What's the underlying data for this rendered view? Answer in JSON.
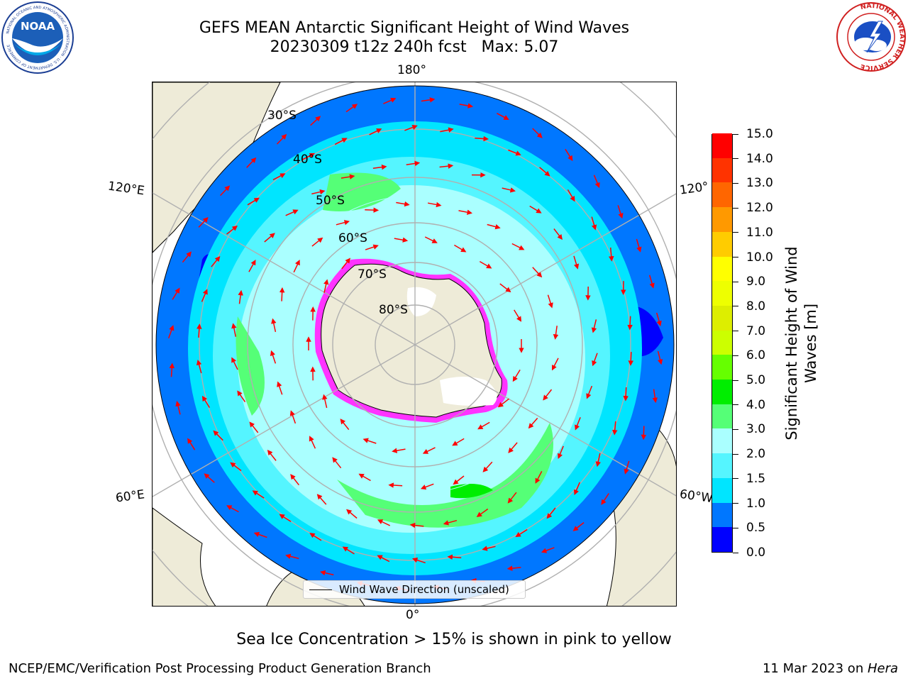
{
  "header": {
    "title_line1": "GEFS MEAN Antarctic Significant Height of Wind Waves",
    "title_line2": "20230309 t12z 240h fcst   Max: 5.07"
  },
  "logos": {
    "left": "NOAA",
    "left_ring": "NATIONAL OCEANIC AND ATMOSPHERIC ADMINISTRATION · U.S. DEPARTMENT OF COMMERCE",
    "right_ring": "NATIONAL WEATHER SERVICE"
  },
  "map": {
    "projection": "south-polar-stereographic",
    "longitude_labels": {
      "top": "180°",
      "bottom": "0°",
      "left_upper": "120°E",
      "right_upper": "120°",
      "left_lower": "60°E",
      "right_lower": "60°W"
    },
    "latitude_labels": [
      "30°S",
      "40°S",
      "50°S",
      "60°S",
      "70°S",
      "80°S"
    ],
    "legend_label": "Wind Wave Direction (unscaled)",
    "colors": {
      "land": "#eeebd8",
      "arrow": "#ff0000",
      "grid": "#b0b0b0",
      "ice_pink": "#ff33ff",
      "ice_white": "#ffffff"
    }
  },
  "colorbar": {
    "label": "Significant Height of Wind\nWaves [m]",
    "ticks": [
      "15.0",
      "14.0",
      "13.0",
      "12.0",
      "11.0",
      "10.0",
      "9.0",
      "8.0",
      "7.0",
      "6.0",
      "5.0",
      "4.0",
      "3.0",
      "2.0",
      "1.5",
      "1.0",
      "0.5",
      "0.0"
    ],
    "bins": [
      {
        "from": 0.0,
        "to": 0.5,
        "color": "#0000ff"
      },
      {
        "from": 0.5,
        "to": 1.0,
        "color": "#0077ff"
      },
      {
        "from": 1.0,
        "to": 1.5,
        "color": "#00e5ff"
      },
      {
        "from": 1.5,
        "to": 2.0,
        "color": "#55f5ff"
      },
      {
        "from": 2.0,
        "to": 3.0,
        "color": "#aaffff"
      },
      {
        "from": 3.0,
        "to": 4.0,
        "color": "#55ff77"
      },
      {
        "from": 4.0,
        "to": 5.0,
        "color": "#00ee00"
      },
      {
        "from": 5.0,
        "to": 6.0,
        "color": "#66ff00"
      },
      {
        "from": 6.0,
        "to": 7.0,
        "color": "#ccff00"
      },
      {
        "from": 7.0,
        "to": 8.0,
        "color": "#ddee00"
      },
      {
        "from": 8.0,
        "to": 9.0,
        "color": "#eeff00"
      },
      {
        "from": 9.0,
        "to": 10.0,
        "color": "#ffff00"
      },
      {
        "from": 10.0,
        "to": 11.0,
        "color": "#ffcc00"
      },
      {
        "from": 11.0,
        "to": 12.0,
        "color": "#ff9900"
      },
      {
        "from": 12.0,
        "to": 13.0,
        "color": "#ff6600"
      },
      {
        "from": 13.0,
        "to": 14.0,
        "color": "#ff3300"
      },
      {
        "from": 14.0,
        "to": 15.0,
        "color": "#ff0000"
      }
    ]
  },
  "notes": {
    "sea_ice": "Sea Ice Concentration > 15% is shown in pink to yellow",
    "credit": "NCEP/EMC/Verification Post Processing Product Generation Branch",
    "date": "11 Mar 2023 on ",
    "machine": "Hera"
  }
}
